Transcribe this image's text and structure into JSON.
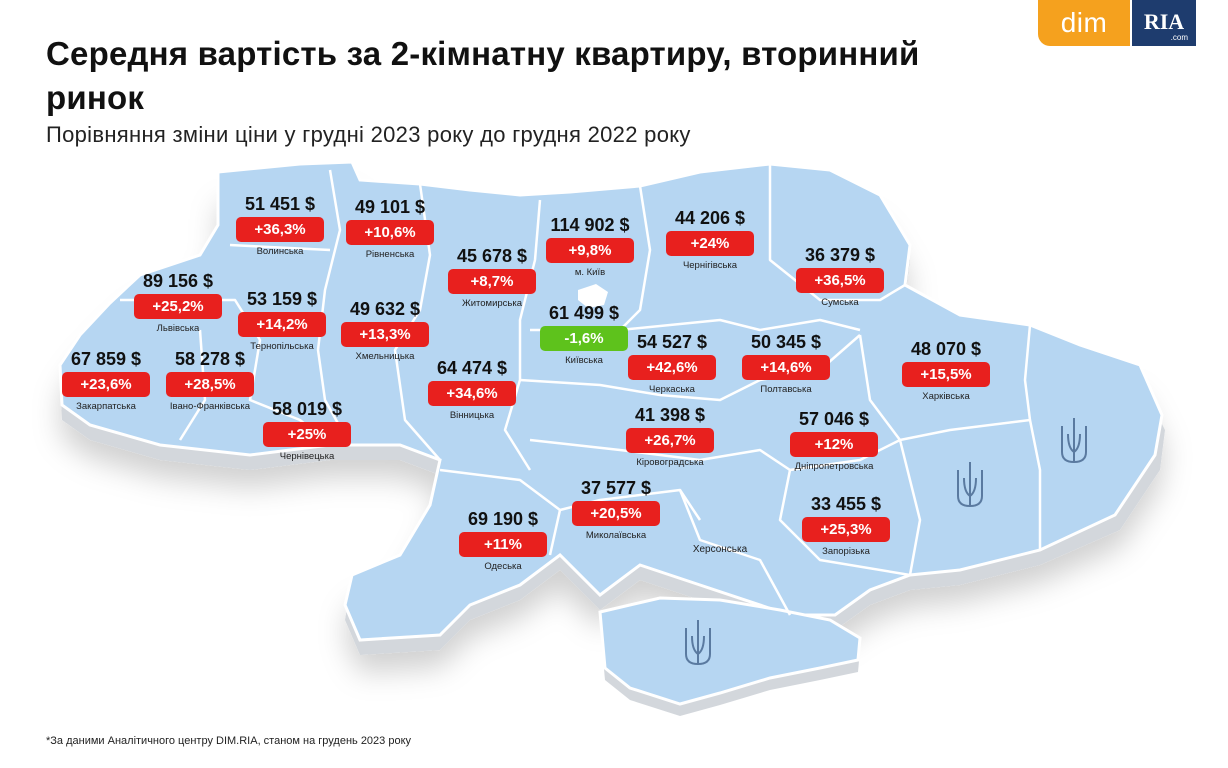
{
  "header": {
    "title": "Середня вартість за 2-кімнатну квартиру, вторинний ринок",
    "subtitle": "Порівняння зміни ціни у грудні 2023 року до грудня 2022 року"
  },
  "logos": {
    "dim": "dim",
    "ria": "RIA",
    "ria_com": ".com"
  },
  "colors": {
    "map_fill": "#b6d6f2",
    "map_border": "#ffffff",
    "map_side": "#d3d7dc",
    "increase_badge": "#e8201e",
    "decrease_badge": "#5ec21c",
    "logo_dim": "#f5a11e",
    "logo_ria": "#1e3c6e"
  },
  "map": {
    "regions": [
      {
        "id": "volynska",
        "name": "Волинська",
        "price": "51 451 $",
        "change": "+36,3%",
        "direction": "up"
      },
      {
        "id": "rivnenska",
        "name": "Рівненська",
        "price": "49 101 $",
        "change": "+10,6%",
        "direction": "up"
      },
      {
        "id": "kyiv-city",
        "name": "м. Київ",
        "price": "114 902 $",
        "change": "+9,8%",
        "direction": "up"
      },
      {
        "id": "chernihivska",
        "name": "Чернігівська",
        "price": "44 206 $",
        "change": "+24%",
        "direction": "up"
      },
      {
        "id": "zhytomyrska",
        "name": "Житомирська",
        "price": "45 678 $",
        "change": "+8,7%",
        "direction": "up"
      },
      {
        "id": "sumska",
        "name": "Сумська",
        "price": "36 379 $",
        "change": "+36,5%",
        "direction": "up"
      },
      {
        "id": "lvivska",
        "name": "Львівська",
        "price": "89 156 $",
        "change": "+25,2%",
        "direction": "up"
      },
      {
        "id": "ternopilska",
        "name": "Тернопільська",
        "price": "53 159 $",
        "change": "+14,2%",
        "direction": "up"
      },
      {
        "id": "khmelnytska",
        "name": "Хмельницька",
        "price": "49 632 $",
        "change": "+13,3%",
        "direction": "up"
      },
      {
        "id": "kyivska",
        "name": "Київська",
        "price": "61 499 $",
        "change": "-1,6%",
        "direction": "down"
      },
      {
        "id": "cherkaska",
        "name": "Черкаська",
        "price": "54 527 $",
        "change": "+42,6%",
        "direction": "up"
      },
      {
        "id": "poltavska",
        "name": "Полтавська",
        "price": "50 345 $",
        "change": "+14,6%",
        "direction": "up"
      },
      {
        "id": "kharkivska",
        "name": "Харківська",
        "price": "48 070 $",
        "change": "+15,5%",
        "direction": "up"
      },
      {
        "id": "zakarpatska",
        "name": "Закарпатська",
        "price": "67 859 $",
        "change": "+23,6%",
        "direction": "up"
      },
      {
        "id": "ivano-frankivska",
        "name": "Івано-Франківська",
        "price": "58 278 $",
        "change": "+28,5%",
        "direction": "up"
      },
      {
        "id": "vinnytska",
        "name": "Вінницька",
        "price": "64 474 $",
        "change": "+34,6%",
        "direction": "up"
      },
      {
        "id": "chernivetska",
        "name": "Чернівецька",
        "price": "58 019 $",
        "change": "+25%",
        "direction": "up"
      },
      {
        "id": "kirovohradska",
        "name": "Кіровоградська",
        "price": "41 398 $",
        "change": "+26,7%",
        "direction": "up"
      },
      {
        "id": "dnipropetrovska",
        "name": "Дніпропетровська",
        "price": "57 046 $",
        "change": "+12%",
        "direction": "up"
      },
      {
        "id": "mykolaivska",
        "name": "Миколаївська",
        "price": "37 577 $",
        "change": "+20,5%",
        "direction": "up"
      },
      {
        "id": "odeska",
        "name": "Одеська",
        "price": "69 190 $",
        "change": "+11%",
        "direction": "up"
      },
      {
        "id": "zaporizka",
        "name": "Запорізька",
        "price": "33 455 $",
        "change": "+25,3%",
        "direction": "up"
      }
    ],
    "unlabeled_regions": [
      {
        "id": "khersonska",
        "name": "Херсонська"
      }
    ],
    "trident_icons": [
      "luhanska",
      "donetska",
      "crimea"
    ]
  },
  "footnote": "*За даними Аналітичного центру DIM.RIA, станом на грудень 2023 року"
}
